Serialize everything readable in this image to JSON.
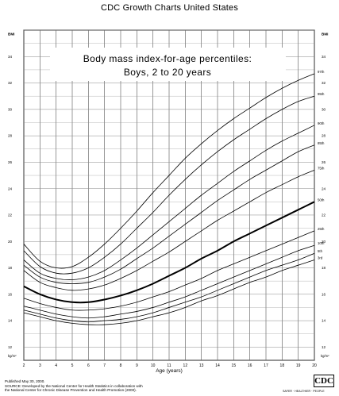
{
  "header": {
    "title": "CDC Growth Charts United States"
  },
  "footer": {
    "published": "Published May 30, 2000.",
    "source_line1": "SOURCE: Developed by the National Center for Health Statistics in collaboration with",
    "source_line2": "the National Center for Chronic Disease Prevention and Health Promotion (2000).",
    "logo": "CDC",
    "tagline": "SAFER · HEALTHIER · PEOPLE"
  },
  "chart_data": {
    "type": "line",
    "title": "Body mass index-for-age percentiles:",
    "subtitle": "Boys, 2 to 20 years",
    "xlabel": "Age (years)",
    "ylabel_left": "kg/m²",
    "ylabel_right": "kg/m²",
    "corner_label_left": "BMI",
    "corner_label_right": "BMI",
    "xlim": [
      2,
      20
    ],
    "ylim": [
      11,
      36
    ],
    "x_ticks": [
      2,
      3,
      4,
      5,
      6,
      7,
      8,
      9,
      10,
      11,
      12,
      13,
      14,
      15,
      16,
      17,
      18,
      19,
      20
    ],
    "y_ticks": [
      12,
      14,
      16,
      18,
      20,
      22,
      24,
      26,
      28,
      30,
      32,
      34
    ],
    "grid": true,
    "x": [
      2,
      3,
      4,
      5,
      6,
      7,
      8,
      9,
      10,
      11,
      12,
      13,
      14,
      15,
      16,
      17,
      18,
      19,
      20
    ],
    "series": [
      {
        "name": "97th",
        "bold": false,
        "values": [
          19.8,
          18.5,
          18.0,
          18.1,
          18.8,
          19.8,
          21.0,
          22.3,
          23.7,
          25.0,
          26.3,
          27.4,
          28.4,
          29.3,
          30.1,
          30.9,
          31.6,
          32.2,
          32.7
        ]
      },
      {
        "name": "95th",
        "bold": false,
        "values": [
          19.3,
          18.1,
          17.6,
          17.6,
          18.0,
          18.8,
          19.8,
          21.0,
          22.2,
          23.5,
          24.7,
          25.8,
          26.8,
          27.7,
          28.5,
          29.3,
          30.0,
          30.6,
          31.0
        ]
      },
      {
        "name": "90th",
        "bold": false,
        "values": [
          18.6,
          17.6,
          17.2,
          17.1,
          17.3,
          17.8,
          18.6,
          19.5,
          20.5,
          21.5,
          22.5,
          23.5,
          24.4,
          25.3,
          26.1,
          26.9,
          27.6,
          28.2,
          28.8
        ]
      },
      {
        "name": "85th",
        "bold": false,
        "values": [
          18.2,
          17.3,
          16.9,
          16.8,
          16.9,
          17.3,
          17.9,
          18.7,
          19.5,
          20.4,
          21.3,
          22.2,
          23.1,
          23.9,
          24.7,
          25.4,
          26.1,
          26.8,
          27.3
        ]
      },
      {
        "name": "75th",
        "bold": false,
        "values": [
          17.8,
          16.9,
          16.5,
          16.3,
          16.4,
          16.7,
          17.2,
          17.8,
          18.5,
          19.2,
          20.0,
          20.8,
          21.6,
          22.3,
          23.0,
          23.7,
          24.3,
          24.9,
          25.4
        ]
      },
      {
        "name": "50th",
        "bold": true,
        "values": [
          16.6,
          16.0,
          15.6,
          15.4,
          15.4,
          15.6,
          15.9,
          16.3,
          16.8,
          17.4,
          18.0,
          18.7,
          19.3,
          20.0,
          20.6,
          21.2,
          21.8,
          22.4,
          23.0
        ]
      },
      {
        "name": "25th",
        "bold": false,
        "values": [
          15.7,
          15.3,
          15.0,
          14.8,
          14.8,
          14.9,
          15.1,
          15.4,
          15.8,
          16.2,
          16.7,
          17.2,
          17.8,
          18.3,
          18.8,
          19.3,
          19.8,
          20.3,
          20.8
        ]
      },
      {
        "name": "10th",
        "bold": false,
        "values": [
          15.1,
          14.8,
          14.5,
          14.3,
          14.2,
          14.3,
          14.5,
          14.7,
          15.0,
          15.4,
          15.8,
          16.3,
          16.8,
          17.3,
          17.8,
          18.3,
          18.8,
          19.3,
          19.7
        ]
      },
      {
        "name": "5th",
        "bold": false,
        "values": [
          14.8,
          14.5,
          14.2,
          14.0,
          13.9,
          14.0,
          14.1,
          14.3,
          14.6,
          15.0,
          15.4,
          15.8,
          16.3,
          16.8,
          17.3,
          17.8,
          18.2,
          18.6,
          19.1
        ]
      },
      {
        "name": "3rd",
        "bold": false,
        "values": [
          14.6,
          14.3,
          14.0,
          13.8,
          13.7,
          13.7,
          13.8,
          14.0,
          14.3,
          14.6,
          15.0,
          15.5,
          15.9,
          16.4,
          16.9,
          17.3,
          17.8,
          18.2,
          18.6
        ]
      }
    ]
  }
}
